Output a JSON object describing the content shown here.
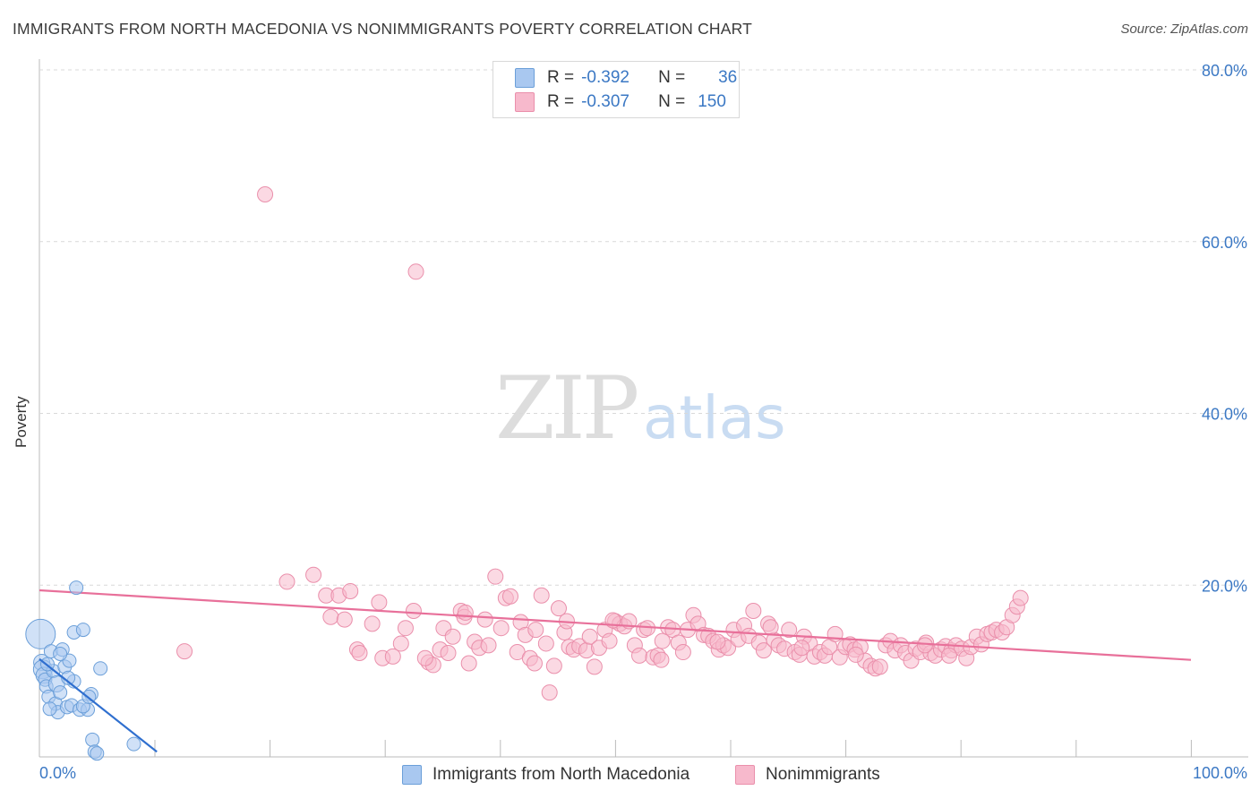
{
  "title": "IMMIGRANTS FROM NORTH MACEDONIA VS NONIMMIGRANTS POVERTY CORRELATION CHART",
  "source": "Source: ZipAtlas.com",
  "watermark": {
    "part1": "ZIP",
    "part2": "atlas"
  },
  "legend": {
    "rows": [
      {
        "r_label": "R =",
        "r_value": "-0.392",
        "n_label": "N =",
        "n_value": "36"
      },
      {
        "r_label": "R =",
        "r_value": "-0.307",
        "n_label": "N =",
        "n_value": "150"
      }
    ]
  },
  "bottom_legend": [
    "Immigrants from North Macedonia",
    "Nonimmigrants"
  ],
  "colors": {
    "blue_fill": "#a9c8f0",
    "blue_stroke": "#6b9fd9",
    "blue_line": "#2f6fcf",
    "pink_fill": "#f7b9cc",
    "pink_stroke": "#ea8fab",
    "pink_line": "#e8709a",
    "tick_text": "#3b78c4"
  },
  "chart_data": {
    "type": "scatter",
    "title": "IMMIGRANTS FROM NORTH MACEDONIA VS NONIMMIGRANTS POVERTY CORRELATION CHART",
    "xlabel": "",
    "ylabel": "Poverty",
    "xlim": [
      0,
      100
    ],
    "ylim": [
      0,
      80
    ],
    "x_tick_labels": [
      "0.0%",
      "100.0%"
    ],
    "y_ticks": [
      20,
      40,
      60,
      80
    ],
    "y_tick_labels": [
      "20.0%",
      "40.0%",
      "60.0%",
      "80.0%"
    ],
    "series": [
      {
        "name": "Immigrants from North Macedonia",
        "r": -0.392,
        "n": 36,
        "trend": {
          "x": [
            0,
            10.2
          ],
          "y": [
            11.4,
            0.6
          ]
        },
        "points": [
          [
            0.1,
            14.3,
            2.2
          ],
          [
            0.2,
            11.0,
            1.2
          ],
          [
            0.3,
            10.2,
            1.4
          ],
          [
            0.4,
            9.5,
            1.2
          ],
          [
            0.5,
            9.0,
            1.0
          ],
          [
            0.6,
            8.2,
            1.0
          ],
          [
            0.8,
            7.0,
            1.0
          ],
          [
            1.0,
            12.3,
            1.0
          ],
          [
            1.2,
            10.0,
            1.0
          ],
          [
            1.4,
            6.2,
            1.0
          ],
          [
            1.5,
            8.5,
            1.2
          ],
          [
            1.6,
            5.2,
            1.0
          ],
          [
            1.8,
            7.5,
            1.0
          ],
          [
            2.0,
            12.5,
            1.0
          ],
          [
            2.2,
            10.5,
            1.0
          ],
          [
            2.4,
            5.8,
            1.0
          ],
          [
            2.6,
            11.2,
            1.0
          ],
          [
            2.8,
            6.0,
            1.0
          ],
          [
            3.0,
            14.5,
            1.0
          ],
          [
            3.2,
            19.7,
            1.0
          ],
          [
            3.5,
            5.5,
            1.0
          ],
          [
            3.8,
            14.8,
            1.0
          ],
          [
            3.0,
            8.8,
            1.0
          ],
          [
            4.2,
            5.5,
            1.0
          ],
          [
            4.5,
            7.3,
            1.0
          ],
          [
            3.8,
            5.9,
            1.0
          ],
          [
            4.3,
            7.0,
            1.0
          ],
          [
            4.6,
            2.0,
            1.0
          ],
          [
            4.8,
            0.6,
            1.0
          ],
          [
            5.0,
            0.4,
            1.0
          ],
          [
            5.3,
            10.3,
            1.0
          ],
          [
            8.2,
            1.5,
            1.0
          ],
          [
            0.9,
            5.6,
            1.0
          ],
          [
            1.8,
            12.0,
            1.0
          ],
          [
            2.5,
            9.2,
            1.0
          ],
          [
            0.7,
            10.8,
            1.0
          ]
        ]
      },
      {
        "name": "Nonimmigrants",
        "r": -0.307,
        "n": 150,
        "trend": {
          "x": [
            0,
            100
          ],
          "y": [
            19.4,
            11.3
          ]
        },
        "points": [
          [
            12.6,
            12.3
          ],
          [
            19.6,
            65.5
          ],
          [
            21.5,
            20.4
          ],
          [
            23.8,
            21.2
          ],
          [
            24.9,
            18.8
          ],
          [
            25.3,
            16.3
          ],
          [
            26.0,
            18.8
          ],
          [
            26.5,
            16.0
          ],
          [
            27.0,
            19.3
          ],
          [
            27.6,
            12.5
          ],
          [
            28.9,
            15.5
          ],
          [
            29.5,
            18.0
          ],
          [
            29.8,
            11.5
          ],
          [
            30.7,
            11.7
          ],
          [
            31.4,
            13.2
          ],
          [
            31.8,
            15.0
          ],
          [
            32.5,
            17.0
          ],
          [
            32.7,
            56.5
          ],
          [
            33.8,
            11.0
          ],
          [
            34.2,
            10.7
          ],
          [
            34.8,
            12.5
          ],
          [
            35.1,
            15.0
          ],
          [
            35.5,
            12.1
          ],
          [
            35.9,
            14.0
          ],
          [
            36.6,
            17.0
          ],
          [
            36.9,
            16.3
          ],
          [
            37.3,
            10.9
          ],
          [
            37.8,
            13.4
          ],
          [
            38.2,
            12.7
          ],
          [
            38.7,
            16.0
          ],
          [
            39.6,
            21.0
          ],
          [
            40.1,
            15.0
          ],
          [
            40.5,
            18.5
          ],
          [
            40.9,
            18.7
          ],
          [
            41.5,
            12.2
          ],
          [
            41.8,
            15.7
          ],
          [
            42.2,
            14.2
          ],
          [
            42.6,
            11.5
          ],
          [
            43.1,
            14.8
          ],
          [
            43.6,
            18.8
          ],
          [
            44.0,
            13.2
          ],
          [
            44.3,
            7.5
          ],
          [
            44.7,
            10.6
          ],
          [
            45.1,
            17.3
          ],
          [
            45.6,
            14.5
          ],
          [
            46.0,
            12.8
          ],
          [
            46.4,
            12.5
          ],
          [
            46.9,
            12.9
          ],
          [
            47.5,
            12.4
          ],
          [
            47.8,
            14.0
          ],
          [
            48.2,
            10.5
          ],
          [
            48.6,
            12.7
          ],
          [
            49.1,
            14.8
          ],
          [
            49.5,
            13.5
          ],
          [
            50.0,
            15.8
          ],
          [
            50.4,
            15.5
          ],
          [
            50.8,
            15.2
          ],
          [
            51.2,
            15.8
          ],
          [
            51.7,
            13.0
          ],
          [
            52.1,
            11.8
          ],
          [
            52.5,
            14.8
          ],
          [
            52.8,
            15.0
          ],
          [
            53.3,
            11.6
          ],
          [
            53.7,
            11.8
          ],
          [
            54.1,
            13.5
          ],
          [
            54.6,
            15.1
          ],
          [
            55.0,
            14.8
          ],
          [
            55.5,
            13.3
          ],
          [
            55.9,
            12.2
          ],
          [
            56.3,
            14.8
          ],
          [
            56.8,
            16.5
          ],
          [
            57.2,
            15.5
          ],
          [
            57.7,
            14.2
          ],
          [
            58.1,
            14.1
          ],
          [
            58.5,
            13.5
          ],
          [
            59.0,
            12.5
          ],
          [
            59.4,
            13.0
          ],
          [
            59.8,
            12.7
          ],
          [
            60.3,
            14.8
          ],
          [
            60.7,
            13.7
          ],
          [
            61.2,
            15.3
          ],
          [
            61.6,
            14.1
          ],
          [
            62.0,
            17.0
          ],
          [
            62.5,
            13.3
          ],
          [
            62.9,
            12.4
          ],
          [
            63.3,
            15.5
          ],
          [
            63.8,
            13.6
          ],
          [
            64.2,
            13.0
          ],
          [
            64.7,
            12.6
          ],
          [
            65.1,
            14.8
          ],
          [
            65.6,
            12.2
          ],
          [
            66.0,
            11.9
          ],
          [
            66.4,
            14.0
          ],
          [
            66.9,
            13.2
          ],
          [
            67.3,
            11.7
          ],
          [
            67.8,
            12.2
          ],
          [
            68.2,
            11.8
          ],
          [
            68.6,
            12.8
          ],
          [
            69.1,
            14.3
          ],
          [
            69.5,
            11.6
          ],
          [
            70.0,
            12.8
          ],
          [
            70.4,
            13.1
          ],
          [
            70.8,
            12.5
          ],
          [
            71.3,
            12.8
          ],
          [
            71.7,
            11.2
          ],
          [
            72.2,
            10.6
          ],
          [
            72.6,
            10.3
          ],
          [
            73.0,
            10.5
          ],
          [
            73.5,
            13.0
          ],
          [
            73.9,
            13.5
          ],
          [
            74.3,
            12.4
          ],
          [
            74.8,
            13.0
          ],
          [
            75.2,
            12.1
          ],
          [
            75.7,
            11.2
          ],
          [
            76.1,
            12.6
          ],
          [
            76.5,
            12.2
          ],
          [
            77.0,
            13.3
          ],
          [
            77.4,
            12.1
          ],
          [
            77.8,
            11.8
          ],
          [
            78.3,
            12.5
          ],
          [
            78.7,
            12.9
          ],
          [
            79.2,
            12.4
          ],
          [
            79.6,
            13.0
          ],
          [
            80.1,
            12.6
          ],
          [
            80.5,
            11.5
          ],
          [
            80.9,
            12.8
          ],
          [
            81.4,
            14.0
          ],
          [
            81.8,
            13.1
          ],
          [
            82.3,
            14.3
          ],
          [
            82.7,
            14.5
          ],
          [
            83.1,
            14.8
          ],
          [
            83.6,
            14.5
          ],
          [
            84.0,
            15.1
          ],
          [
            84.5,
            16.5
          ],
          [
            84.9,
            17.5
          ],
          [
            85.2,
            18.5
          ],
          [
            79.0,
            11.8
          ],
          [
            63.5,
            15.1
          ],
          [
            54.0,
            11.3
          ],
          [
            45.8,
            15.8
          ],
          [
            39.0,
            13.0
          ],
          [
            33.5,
            11.5
          ],
          [
            37.0,
            16.8
          ],
          [
            66.2,
            12.7
          ],
          [
            70.9,
            11.9
          ],
          [
            58.9,
            13.4
          ],
          [
            49.8,
            15.9
          ],
          [
            27.8,
            12.1
          ],
          [
            43.0,
            10.9
          ],
          [
            76.9,
            13.0
          ]
        ]
      }
    ]
  }
}
